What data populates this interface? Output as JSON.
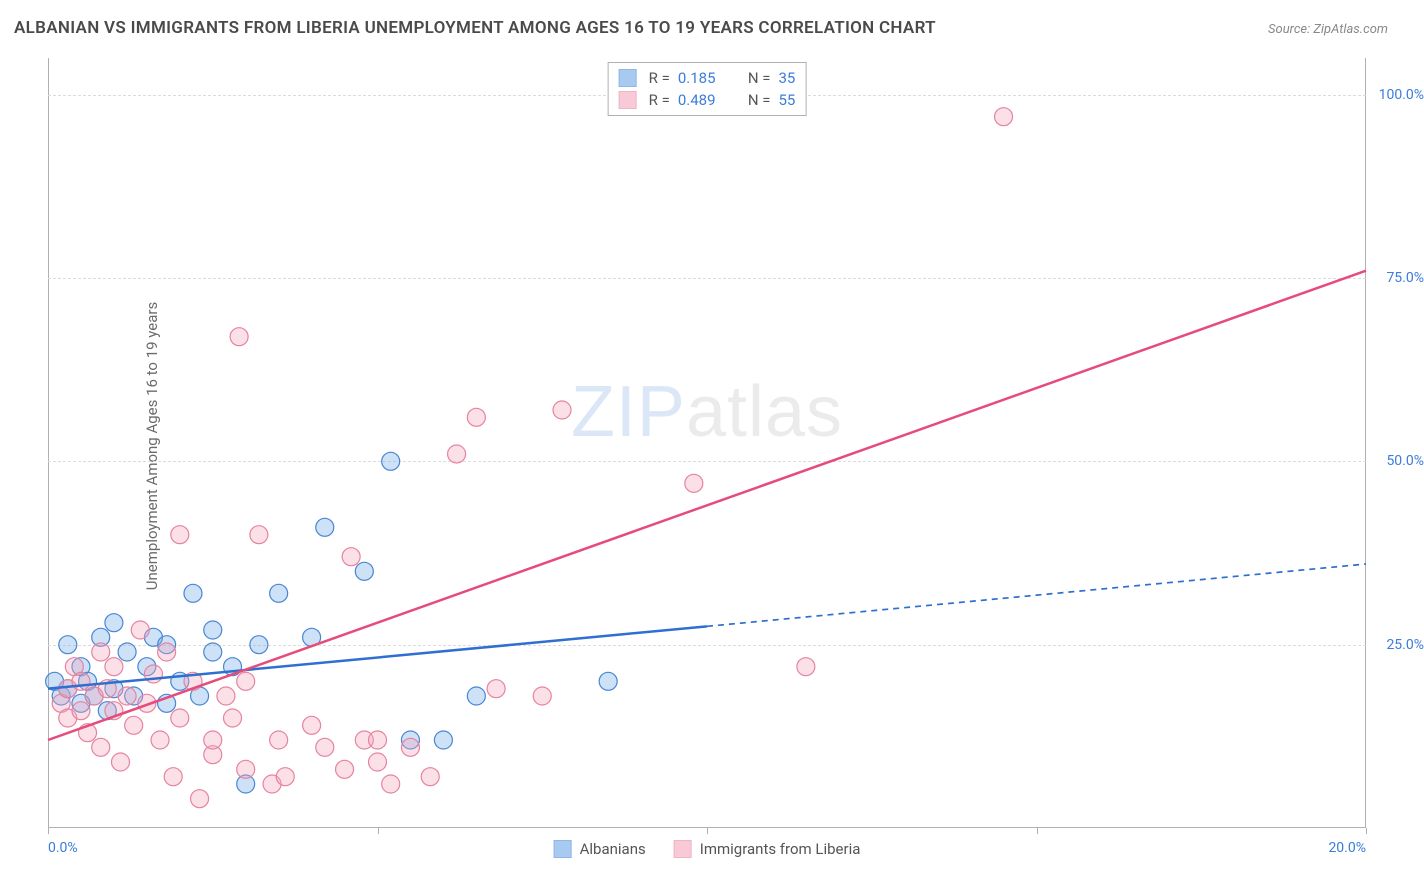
{
  "title": "ALBANIAN VS IMMIGRANTS FROM LIBERIA UNEMPLOYMENT AMONG AGES 16 TO 19 YEARS CORRELATION CHART",
  "source": "Source: ZipAtlas.com",
  "ylabel": "Unemployment Among Ages 16 to 19 years",
  "watermark_zip": "ZIP",
  "watermark_atlas": "atlas",
  "chart": {
    "type": "scatter",
    "background_color": "#ffffff",
    "grid_color": "#dcdcdc",
    "axis_color": "#b0b0b0",
    "label_color": "#3b7dd8",
    "text_color": "#6b6b6b",
    "title_color": "#4a4a4a",
    "title_fontsize": 17,
    "label_fontsize": 15,
    "tick_fontsize": 14,
    "xlim": [
      0,
      20
    ],
    "ylim": [
      0,
      105
    ],
    "xticks": [
      0,
      5,
      10,
      15,
      20
    ],
    "xtick_labels": [
      "0.0%",
      "",
      "",
      "",
      "20.0%"
    ],
    "yticks": [
      25,
      50,
      75,
      100
    ],
    "ytick_labels": [
      "25.0%",
      "50.0%",
      "75.0%",
      "100.0%"
    ],
    "marker_radius": 9,
    "marker_stroke_width": 1.2,
    "marker_fill_opacity": 0.35,
    "line_width": 2.5,
    "dash_pattern": "6 5",
    "series": [
      {
        "name": "Albanians",
        "color": "#6fa8e8",
        "stroke": "#4a86d4",
        "line_color": "#2f6fd0",
        "r": 0.185,
        "n": 35,
        "regression": {
          "x1": 0,
          "y1": 19,
          "x2": 20,
          "y2": 36,
          "solid_until_x": 10
        },
        "points": [
          [
            0.1,
            20
          ],
          [
            0.2,
            18
          ],
          [
            0.3,
            19
          ],
          [
            0.3,
            25
          ],
          [
            0.5,
            17
          ],
          [
            0.5,
            22
          ],
          [
            0.6,
            20
          ],
          [
            0.7,
            18
          ],
          [
            0.8,
            26
          ],
          [
            0.9,
            16
          ],
          [
            1.0,
            19
          ],
          [
            1.0,
            28
          ],
          [
            1.2,
            24
          ],
          [
            1.3,
            18
          ],
          [
            1.5,
            22
          ],
          [
            1.6,
            26
          ],
          [
            1.8,
            17
          ],
          [
            1.8,
            25
          ],
          [
            2.0,
            20
          ],
          [
            2.2,
            32
          ],
          [
            2.3,
            18
          ],
          [
            2.5,
            24
          ],
          [
            2.5,
            27
          ],
          [
            2.8,
            22
          ],
          [
            3.0,
            6
          ],
          [
            3.2,
            25
          ],
          [
            3.5,
            32
          ],
          [
            4.0,
            26
          ],
          [
            4.2,
            41
          ],
          [
            4.8,
            35
          ],
          [
            5.2,
            50
          ],
          [
            5.5,
            12
          ],
          [
            6.0,
            12
          ],
          [
            6.5,
            18
          ],
          [
            8.5,
            20
          ]
        ]
      },
      {
        "name": "Immigrants from Liberia",
        "color": "#f4a7bd",
        "stroke": "#e6839f",
        "line_color": "#e54c7b",
        "r": 0.489,
        "n": 55,
        "regression": {
          "x1": 0,
          "y1": 12,
          "x2": 20,
          "y2": 76,
          "solid_until_x": 20
        },
        "points": [
          [
            0.2,
            17
          ],
          [
            0.3,
            19
          ],
          [
            0.3,
            15
          ],
          [
            0.4,
            22
          ],
          [
            0.5,
            16
          ],
          [
            0.5,
            20
          ],
          [
            0.6,
            13
          ],
          [
            0.7,
            18
          ],
          [
            0.8,
            24
          ],
          [
            0.8,
            11
          ],
          [
            0.9,
            19
          ],
          [
            1.0,
            16
          ],
          [
            1.0,
            22
          ],
          [
            1.1,
            9
          ],
          [
            1.2,
            18
          ],
          [
            1.3,
            14
          ],
          [
            1.4,
            27
          ],
          [
            1.5,
            17
          ],
          [
            1.6,
            21
          ],
          [
            1.7,
            12
          ],
          [
            1.8,
            24
          ],
          [
            1.9,
            7
          ],
          [
            2.0,
            40
          ],
          [
            2.0,
            15
          ],
          [
            2.2,
            20
          ],
          [
            2.3,
            4
          ],
          [
            2.5,
            10
          ],
          [
            2.5,
            12
          ],
          [
            2.7,
            18
          ],
          [
            2.8,
            15
          ],
          [
            2.9,
            67
          ],
          [
            3.0,
            8
          ],
          [
            3.0,
            20
          ],
          [
            3.2,
            40
          ],
          [
            3.4,
            6
          ],
          [
            3.5,
            12
          ],
          [
            3.6,
            7
          ],
          [
            4.0,
            14
          ],
          [
            4.2,
            11
          ],
          [
            4.5,
            8
          ],
          [
            4.6,
            37
          ],
          [
            4.8,
            12
          ],
          [
            5.0,
            9
          ],
          [
            5.0,
            12
          ],
          [
            5.2,
            6
          ],
          [
            5.5,
            11
          ],
          [
            5.8,
            7
          ],
          [
            6.2,
            51
          ],
          [
            6.5,
            56
          ],
          [
            6.8,
            19
          ],
          [
            7.5,
            18
          ],
          [
            7.8,
            57
          ],
          [
            9.8,
            47
          ],
          [
            11.5,
            22
          ],
          [
            14.5,
            97
          ]
        ]
      }
    ]
  },
  "legend_top": {
    "r_label": "R  =",
    "n_label": "N  ="
  },
  "legend_bottom": [
    {
      "label": "Albanians",
      "color": "#6fa8e8",
      "stroke": "#4a86d4"
    },
    {
      "label": "Immigrants from Liberia",
      "color": "#f4a7bd",
      "stroke": "#e6839f"
    }
  ]
}
